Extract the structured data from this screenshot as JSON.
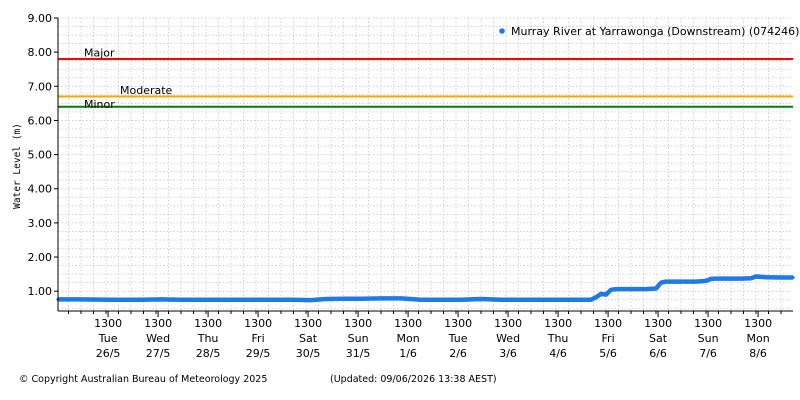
{
  "chart_data": {
    "type": "line",
    "ylabel": "Water Level (m)",
    "ylim": [
      0.42,
      9.0
    ],
    "yticks": [
      "9.00",
      "8.00",
      "7.00",
      "6.00",
      "5.00",
      "4.00",
      "3.00",
      "2.00",
      "1.00"
    ],
    "ytick_values": [
      9,
      8,
      7,
      6,
      5,
      4,
      3,
      2,
      1
    ],
    "xlim_days": [
      25.54,
      40.24
    ],
    "xticks": [
      {
        "time": "1300",
        "day": "Tue",
        "date": "26/5"
      },
      {
        "time": "1300",
        "day": "Wed",
        "date": "27/5"
      },
      {
        "time": "1300",
        "day": "Thu",
        "date": "28/5"
      },
      {
        "time": "1300",
        "day": "Fri",
        "date": "29/5"
      },
      {
        "time": "1300",
        "day": "Sat",
        "date": "30/5"
      },
      {
        "time": "1300",
        "day": "Sun",
        "date": "31/5"
      },
      {
        "time": "1300",
        "day": "Mon",
        "date": "1/6"
      },
      {
        "time": "1300",
        "day": "Tue",
        "date": "2/6"
      },
      {
        "time": "1300",
        "day": "Wed",
        "date": "3/6"
      },
      {
        "time": "1300",
        "day": "Thu",
        "date": "4/6"
      },
      {
        "time": "1300",
        "day": "Fri",
        "date": "5/6"
      },
      {
        "time": "1300",
        "day": "Sat",
        "date": "6/6"
      },
      {
        "time": "1300",
        "day": "Sun",
        "date": "7/6"
      },
      {
        "time": "1300",
        "day": "Mon",
        "date": "8/6"
      }
    ],
    "thresholds": [
      {
        "label": "Major",
        "value": 7.8,
        "color": "#ff0000"
      },
      {
        "label": "Moderate",
        "value": 6.7,
        "color": "#ffa500"
      },
      {
        "label": "Minor",
        "value": 6.4,
        "color": "#008000"
      }
    ],
    "series": [
      {
        "name": "Murray River at Yarrawonga (Downstream) (074246)",
        "color": "#1f7ae8",
        "x": [
          25.54,
          26.0,
          26.6,
          27.2,
          27.6,
          28.0,
          28.4,
          29.0,
          29.6,
          30.2,
          30.6,
          30.9,
          31.3,
          31.6,
          32.0,
          32.4,
          32.8,
          33.2,
          33.6,
          34.0,
          34.4,
          35.0,
          35.6,
          36.0,
          36.2,
          36.3,
          36.4,
          36.5,
          36.6,
          36.7,
          37.0,
          37.3,
          37.5,
          37.6,
          37.7,
          38.0,
          38.3,
          38.5,
          38.6,
          38.7,
          39.0,
          39.2,
          39.4,
          39.5,
          39.7,
          40.0,
          40.24
        ],
        "values": [
          0.76,
          0.76,
          0.75,
          0.75,
          0.76,
          0.75,
          0.75,
          0.75,
          0.75,
          0.75,
          0.74,
          0.77,
          0.78,
          0.78,
          0.79,
          0.79,
          0.75,
          0.75,
          0.75,
          0.77,
          0.75,
          0.75,
          0.75,
          0.75,
          0.75,
          0.82,
          0.92,
          0.9,
          1.04,
          1.06,
          1.06,
          1.06,
          1.08,
          1.25,
          1.28,
          1.28,
          1.28,
          1.3,
          1.36,
          1.37,
          1.37,
          1.37,
          1.38,
          1.43,
          1.41,
          1.4,
          1.4
        ]
      }
    ],
    "grid": true,
    "legend": "top-right"
  },
  "footer": {
    "copyright": "© Copyright Australian Bureau of Meteorology 2025",
    "updated": "(Updated: 09/06/2026 13:38 AEST)"
  }
}
